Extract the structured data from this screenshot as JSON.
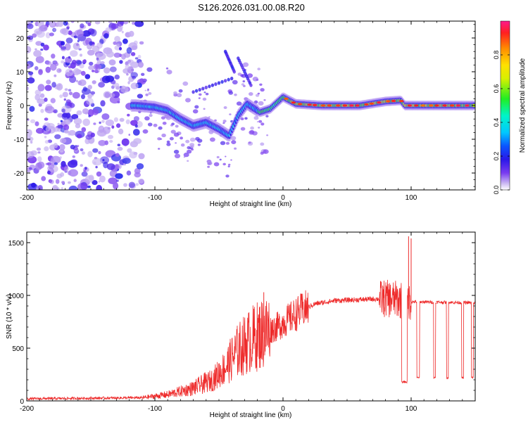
{
  "title": "S126.2026.031.00.08.R20",
  "colors": {
    "snr_line": "#ee2a2a",
    "axis": "#000000",
    "background": "#ffffff"
  },
  "chart_data": [
    {
      "type": "heatmap",
      "name": "spectrogram",
      "xlabel": "Height of straight line (km)",
      "ylabel": "Frequency (Hz)",
      "xlim": [
        -200,
        150
      ],
      "ylim": [
        -25,
        25
      ],
      "xticks": [
        -200,
        -100,
        0,
        100
      ],
      "yticks": [
        -20,
        -10,
        0,
        10,
        20
      ],
      "colorbar": {
        "label": "Normalized spectral amplitude",
        "range": [
          0,
          1
        ],
        "ticks": [
          "0.0",
          "0.2",
          "0.4",
          "0.6",
          "0.8"
        ]
      },
      "ridge": [
        {
          "x": -115,
          "y": 0.0
        },
        {
          "x": -100,
          "y": -0.5
        },
        {
          "x": -90,
          "y": -1.5
        },
        {
          "x": -80,
          "y": -4.0
        },
        {
          "x": -70,
          "y": -6.0
        },
        {
          "x": -60,
          "y": -5.0
        },
        {
          "x": -50,
          "y": -7.0
        },
        {
          "x": -42,
          "y": -9.0
        },
        {
          "x": -35,
          "y": -3.0
        },
        {
          "x": -28,
          "y": 0.5
        },
        {
          "x": -18,
          "y": -2.0
        },
        {
          "x": -10,
          "y": -1.0
        },
        {
          "x": 0,
          "y": 2.5
        },
        {
          "x": 10,
          "y": 0.5
        },
        {
          "x": 30,
          "y": 0.0
        },
        {
          "x": 60,
          "y": 0.0
        },
        {
          "x": 80,
          "y": 1.2
        },
        {
          "x": 92,
          "y": 1.5
        },
        {
          "x": 95,
          "y": 0.0
        },
        {
          "x": 150,
          "y": 0.0
        }
      ]
    },
    {
      "type": "line",
      "name": "snr",
      "xlabel": "Height of straight line (km)",
      "ylabel": "SNR (10 * v/v)",
      "xlim": [
        -200,
        150
      ],
      "ylim": [
        0,
        1600
      ],
      "xticks": [
        -200,
        -100,
        0,
        100
      ],
      "yticks": [
        0,
        500,
        1000,
        1500
      ],
      "envelope": [
        {
          "x": -200,
          "y": 20
        },
        {
          "x": -110,
          "y": 30
        },
        {
          "x": -90,
          "y": 60
        },
        {
          "x": -70,
          "y": 120
        },
        {
          "x": -55,
          "y": 200
        },
        {
          "x": -45,
          "y": 320
        },
        {
          "x": -35,
          "y": 480
        },
        {
          "x": -25,
          "y": 580
        },
        {
          "x": -15,
          "y": 650
        },
        {
          "x": -5,
          "y": 700
        },
        {
          "x": 5,
          "y": 780
        },
        {
          "x": 15,
          "y": 860
        },
        {
          "x": 25,
          "y": 920
        },
        {
          "x": 40,
          "y": 950
        },
        {
          "x": 60,
          "y": 960
        },
        {
          "x": 80,
          "y": 970
        },
        {
          "x": 90,
          "y": 960
        },
        {
          "x": 100,
          "y": 940
        },
        {
          "x": 150,
          "y": 930
        }
      ],
      "spikes": [
        {
          "x": -15,
          "y": 1030
        },
        {
          "x": 98,
          "y": 1560
        },
        {
          "x": 100,
          "y": 1540
        }
      ],
      "dropouts": [
        {
          "x0": 92.5,
          "x1": 97.0,
          "y": 180
        },
        {
          "x0": 104.5,
          "x1": 106.5,
          "y": 220
        },
        {
          "x0": 117.5,
          "x1": 119.0,
          "y": 220
        },
        {
          "x0": 127.5,
          "x1": 129.0,
          "y": 220
        },
        {
          "x0": 139.5,
          "x1": 141.0,
          "y": 220
        },
        {
          "x0": 147.0,
          "x1": 148.5,
          "y": 220
        }
      ]
    }
  ]
}
